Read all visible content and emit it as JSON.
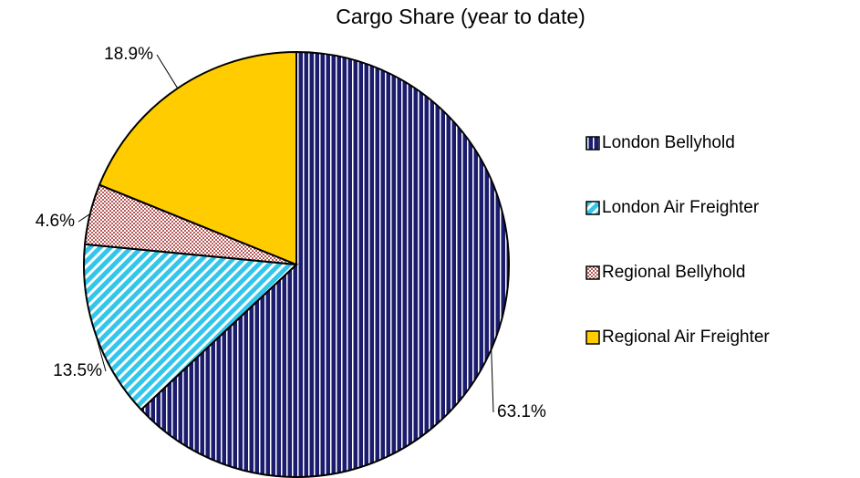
{
  "chart_data": {
    "type": "pie",
    "title": "Cargo Share (year to date)",
    "categories": [
      "London Bellyhold",
      "London Air Freighter",
      "Regional Bellyhold",
      "Regional Air Freighter"
    ],
    "values": [
      63.1,
      13.5,
      4.6,
      18.9
    ],
    "value_labels": [
      "63.1%",
      "13.5%",
      "4.6%",
      "18.9%"
    ],
    "colors": [
      "#1c1c6e",
      "#33c6ea",
      "#b85a5a",
      "#ffcc00"
    ]
  }
}
